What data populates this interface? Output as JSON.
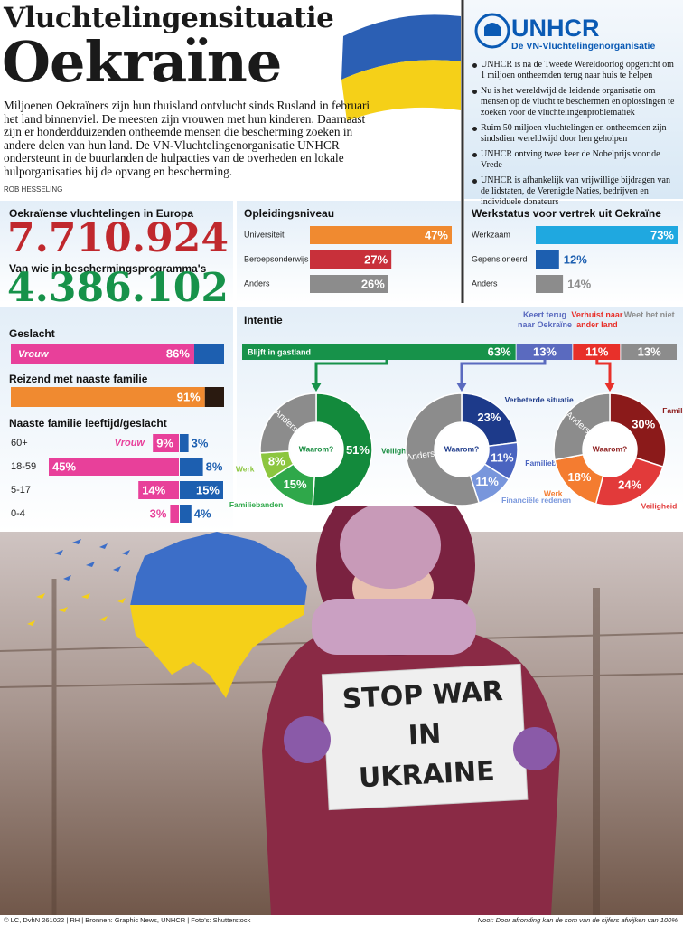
{
  "header": {
    "title1": "Vluchtelingensituatie",
    "title2": "Oekraïne",
    "intro": "Miljoenen Oekraïners zijn hun thuisland ontvlucht sinds Rusland in februari het land binnenviel. De meesten zijn vrouwen met hun kinderen. Daarnaast zijn er honderdduizenden ontheemde mensen die bescherming zoeken in andere delen van hun land. De VN-Vluchtelingenorganisatie UNHCR ondersteunt in de buurlanden de hulpacties van de overheden en lokale hulporganisaties bij de opvang en bescherming.",
    "byline": "ROB HESSELING"
  },
  "unhcr": {
    "logo": "UNHCR",
    "subtitle": "De VN-Vluchtelingenorganisatie",
    "bullets": [
      "UNHCR is na de Tweede Wereldoorlog opgericht om 1 miljoen ontheemden terug naar huis te helpen",
      "Nu is het wereldwijd de leidende organisatie om mensen op de vlucht te beschermen en oplossingen te zoeken voor de vluchtelingenproblematiek",
      "Ruim 50 miljoen vluchtelingen en ontheemden zijn sindsdien wereldwijd door hen geholpen",
      "UNHCR ontving twee keer de Nobelprijs voor de Vrede",
      "UNHCR is afhankelijk van vrijwillige bijdragen van de lidstaten, de Verenigde Naties, bedrijven en individuele donateurs"
    ]
  },
  "refugees": {
    "label1": "Oekraïense vluchtelingen in Europa",
    "number1": "7.710.924",
    "label2": "Van wie in beschermingsprogramma's",
    "number2": "4.386.102"
  },
  "education": {
    "title": "Opleidingsniveau",
    "categories": [
      "Universiteit",
      "Beroepsonderwijs",
      "Anders"
    ],
    "values": [
      47,
      27,
      26
    ],
    "value_labels": [
      "47%",
      "27%",
      "26%"
    ],
    "colors": [
      "#f08a30",
      "#c8303a",
      "#8c8c8c"
    ]
  },
  "work": {
    "title": "Werkstatus voor vertrek uit Oekraïne",
    "categories": [
      "Werkzaam",
      "Gepensioneerd",
      "Anders"
    ],
    "values": [
      73,
      12,
      14
    ],
    "value_labels": [
      "73%",
      "12%",
      "14%"
    ],
    "colors": [
      "#1fa8e0",
      "#1d5fb0",
      "#8c8c8c"
    ]
  },
  "gender": {
    "title": "Geslacht",
    "category": "Vrouw",
    "value": 86,
    "value_label": "86%",
    "color": "#e8409a",
    "rest_color": "#1d5fb0"
  },
  "family": {
    "title": "Reizend met naaste familie",
    "value": 91,
    "value_label": "91%",
    "color": "#f08a30",
    "rest_color": "#2a1a10"
  },
  "age": {
    "title": "Naaste familie leeftijd/geslacht",
    "categories": [
      "60+",
      "18-59",
      "5-17",
      "0-4"
    ],
    "series": [
      {
        "name": "Vrouw",
        "color": "#e8409a",
        "values": [
          9,
          45,
          14,
          3
        ],
        "value_labels": [
          "9%",
          "45%",
          "14%",
          "3%"
        ]
      },
      {
        "color": "#1d5fb0",
        "values": [
          3,
          8,
          15,
          4
        ],
        "value_labels": [
          "3%",
          "8%",
          "15%",
          "4%"
        ]
      }
    ]
  },
  "intent": {
    "title": "Intentie",
    "categories": [
      "Blijft in gastland",
      "Keert terug naar Oekraïne",
      "Verhuist naar ander land",
      "Weet het niet"
    ],
    "values": [
      63,
      13,
      11,
      13
    ],
    "value_labels": [
      "63%",
      "13%",
      "11%",
      "13%"
    ],
    "colors": [
      "#17924a",
      "#5a6abf",
      "#e8302a",
      "#8c8c8c"
    ]
  },
  "reasons": [
    {
      "center": "Waarom?",
      "categories": [
        "Veiligheid",
        "Familiebanden",
        "Werk",
        "Anders"
      ],
      "values": [
        51,
        15,
        8,
        26
      ],
      "value_labels": [
        "51%",
        "15%",
        "8%",
        null
      ],
      "colors": [
        "#138a3c",
        "#2fa84a",
        "#8cc63f",
        "#8c8c8c"
      ]
    },
    {
      "center": "Waarom?",
      "categories": [
        "Verbeterde situatie",
        "Familiebezoek",
        "Financiële redenen",
        "Anders"
      ],
      "values": [
        23,
        11,
        11,
        55
      ],
      "value_labels": [
        "23%",
        "11%",
        "11%",
        null
      ],
      "colors": [
        "#1d3a8a",
        "#4a64c0",
        "#7896dc",
        "#8c8c8c"
      ]
    },
    {
      "center": "Waarom?",
      "categories": [
        "Familiebanden",
        "Veiligheid",
        "Werk",
        "Anders"
      ],
      "values": [
        30,
        24,
        18,
        28
      ],
      "value_labels": [
        "30%",
        "24%",
        "18%",
        null
      ],
      "colors": [
        "#8b1a1a",
        "#e23a3a",
        "#f47c30",
        "#8c8c8c"
      ]
    }
  ],
  "photo": {
    "sign": [
      "STOP WAR",
      "IN",
      "UKRAINE"
    ]
  },
  "footer": {
    "credits": "© LC, DvhN 261022 | RH | Bronnen: Graphic News, UNHCR | Foto's: Shutterstock",
    "note": "Noot: Door afronding kan de som van de cijfers afwijken van 100%"
  }
}
